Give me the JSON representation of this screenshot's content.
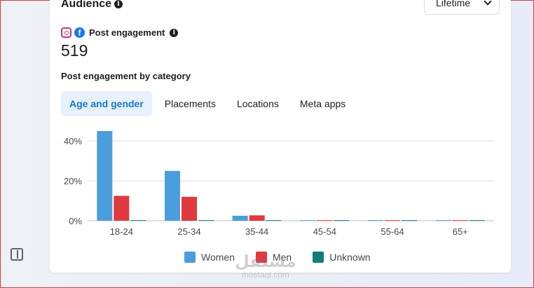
{
  "audience": {
    "title": "Audience",
    "info": "i"
  },
  "period_select": {
    "value": "Lifetime"
  },
  "metric": {
    "label": "Post engagement",
    "value": "519",
    "info": "i"
  },
  "breakdown": {
    "heading": "Post engagement by category"
  },
  "tabs": [
    {
      "label": "Age and gender",
      "active": true
    },
    {
      "label": "Placements",
      "active": false
    },
    {
      "label": "Locations",
      "active": false
    },
    {
      "label": "Meta apps",
      "active": false
    }
  ],
  "chart_data": {
    "type": "bar",
    "categories": [
      "18-24",
      "25-34",
      "35-44",
      "45-54",
      "55-64",
      "65+"
    ],
    "series": [
      {
        "name": "Women",
        "color": "#4a9edb",
        "values": [
          45,
          25,
          2.5,
          0.3,
          0.3,
          0.3
        ]
      },
      {
        "name": "Men",
        "color": "#e0393e",
        "values": [
          12.5,
          12,
          2.7,
          0.3,
          0.3,
          0.3
        ]
      },
      {
        "name": "Unknown",
        "color": "#127c7c",
        "values": [
          0.3,
          0.3,
          0.3,
          0.3,
          0.3,
          0.3
        ]
      }
    ],
    "yticks": [
      "0%",
      "20%",
      "40%"
    ],
    "ytick_values": [
      0,
      20,
      40
    ],
    "ylim": [
      0,
      45
    ],
    "grid": true,
    "legend_position": "bottom"
  },
  "watermark": {
    "text": "مستقل",
    "domain": "mostaql.com"
  }
}
